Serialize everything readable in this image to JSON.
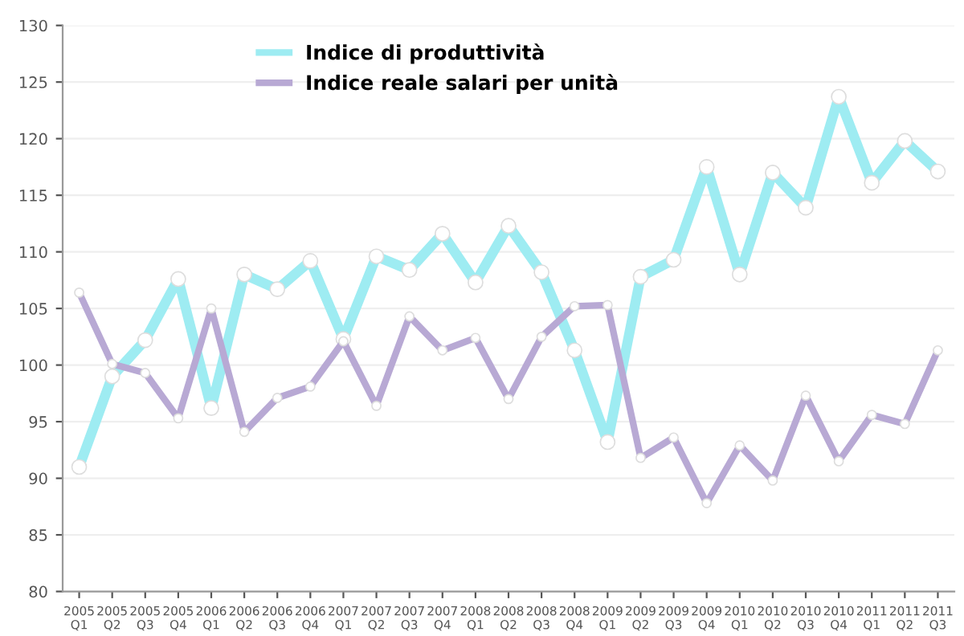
{
  "chart_data": {
    "type": "line",
    "categories": [
      "2005\nQ1",
      "2005\nQ2",
      "2005\nQ3",
      "2005\nQ4",
      "2006\nQ1",
      "2006\nQ2",
      "2006\nQ3",
      "2006\nQ4",
      "2007\nQ1",
      "2007\nQ2",
      "2007\nQ3",
      "2007\nQ4",
      "2008\nQ1",
      "2008\nQ2",
      "2008\nQ3",
      "2008\nQ4",
      "2009\nQ1",
      "2009\nQ2",
      "2009\nQ3",
      "2009\nQ4",
      "2010\nQ1",
      "2010\nQ2",
      "2010\nQ3",
      "2010\nQ4",
      "2011\nQ1",
      "2011\nQ2",
      "2011\nQ3"
    ],
    "series": [
      {
        "name": "Indice di produttività",
        "color": "#9eecf2",
        "values": [
          91,
          99,
          102.2,
          107.6,
          96.2,
          108,
          106.7,
          109.2,
          102.3,
          109.6,
          108.4,
          111.6,
          107.3,
          112.3,
          108.2,
          101.3,
          93.2,
          107.8,
          109.3,
          117.5,
          108,
          117,
          113.9,
          123.7,
          116.1,
          119.8,
          117.1
        ]
      },
      {
        "name": "Indice reale salari per unità",
        "color": "#b8a9d4",
        "values": [
          106.4,
          100.1,
          99.3,
          95.3,
          105,
          94.1,
          97.1,
          98.1,
          102.1,
          96.4,
          104.3,
          101.3,
          102.4,
          97,
          102.5,
          105.2,
          105.3,
          91.8,
          93.6,
          87.8,
          92.9,
          89.8,
          97.3,
          91.5,
          95.6,
          94.8,
          101.3
        ]
      }
    ],
    "ylim": [
      80,
      130
    ],
    "yticks": [
      80,
      85,
      90,
      95,
      100,
      105,
      110,
      115,
      120,
      125,
      130
    ],
    "grid": "y",
    "legend": "top left",
    "marker": "circle",
    "line_style": "solid"
  }
}
